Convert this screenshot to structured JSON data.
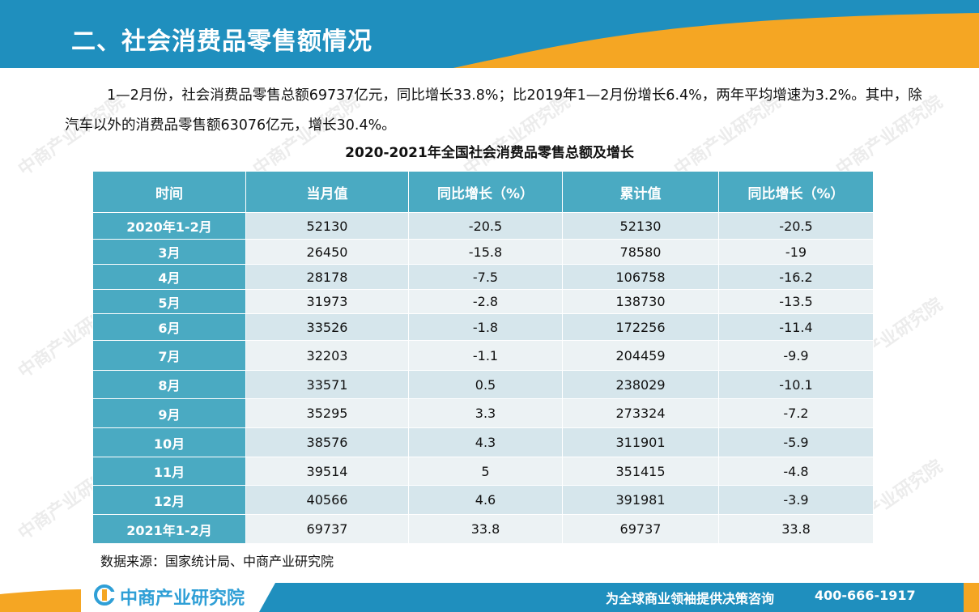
{
  "header": {
    "title": "二、社会消费品零售额情况",
    "colors": {
      "band": "#1f8fbe",
      "accent": "#f5a623"
    }
  },
  "paragraph": "1—2月份，社会消费品零售总额69737亿元，同比增长33.8%；比2019年1—2月份增长6.4%，两年平均增速为3.2%。其中，除汽车以外的消费品零售额63076亿元，增长30.4%。",
  "table": {
    "title": "2020-2021年全国社会消费品零售总额及增长",
    "headers": [
      "时间",
      "当月值",
      "同比增长（%）",
      "累计值",
      "同比增长（%）"
    ],
    "rows": [
      [
        "2020年1-2月",
        "52130",
        "-20.5",
        "52130",
        "-20.5"
      ],
      [
        "3月",
        "26450",
        "-15.8",
        "78580",
        "-19"
      ],
      [
        "4月",
        "28178",
        "-7.5",
        "106758",
        "-16.2"
      ],
      [
        "5月",
        "31973",
        "-2.8",
        "138730",
        "-13.5"
      ],
      [
        "6月",
        "33526",
        "-1.8",
        "172256",
        "-11.4"
      ],
      [
        "7月",
        "32203",
        "-1.1",
        "204459",
        "-9.9"
      ],
      [
        "8月",
        "33571",
        "0.5",
        "238029",
        "-10.1"
      ],
      [
        "9月",
        "35295",
        "3.3",
        "273324",
        "-7.2"
      ],
      [
        "10月",
        "38576",
        "4.3",
        "311901",
        "-5.9"
      ],
      [
        "11月",
        "39514",
        "5",
        "351415",
        "-4.8"
      ],
      [
        "12月",
        "40566",
        "4.6",
        "391981",
        "-3.9"
      ],
      [
        "2021年1-2月",
        "69737",
        "33.8",
        "69737",
        "33.8"
      ]
    ]
  },
  "source": "数据来源：国家统计局、中商产业研究院",
  "footer": {
    "brand": "中商产业研究院",
    "slogan": "为全球商业领袖提供决策咨询",
    "phone": "400-666-1917"
  },
  "watermark": "中商产业研究院"
}
